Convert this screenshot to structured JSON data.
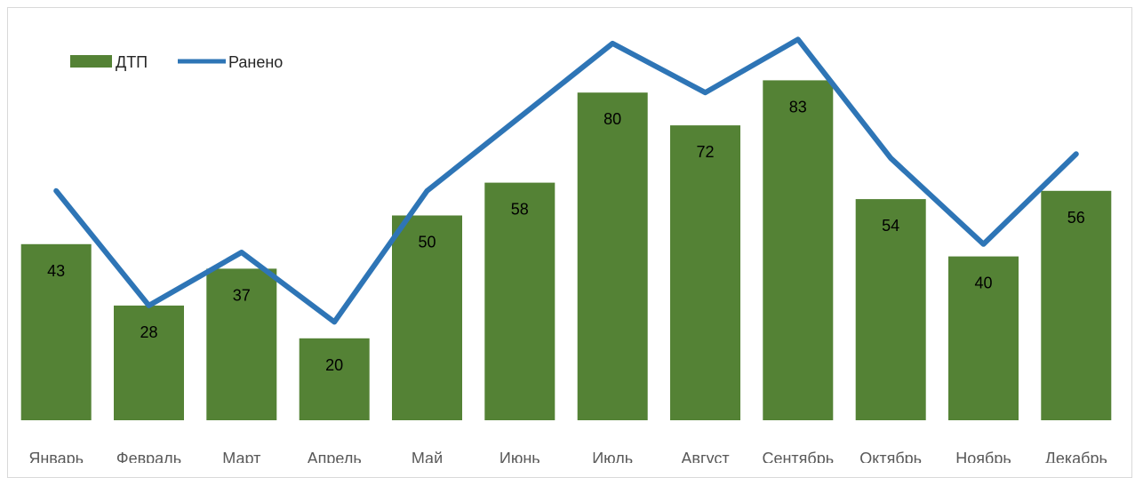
{
  "chart_data": {
    "type": "bar",
    "title": "",
    "categories": [
      "Январь",
      "Февраль",
      "Март",
      "Апрель",
      "Май",
      "Июнь",
      "Июль",
      "Август",
      "Сентябрь",
      "Октябрь",
      "Ноябрь",
      "Декабрь"
    ],
    "series": [
      {
        "name": "ДТП",
        "type": "bar",
        "color": "#548235",
        "values": [
          43,
          28,
          37,
          20,
          50,
          58,
          80,
          72,
          83,
          54,
          40,
          56
        ]
      },
      {
        "name": "Ранено",
        "type": "line",
        "color": "#2E75B6",
        "values": [
          56,
          28,
          41,
          24,
          56,
          74,
          92,
          80,
          93,
          64,
          43,
          65
        ]
      }
    ],
    "data_labels": true,
    "legend_position": "top-left",
    "grid": false,
    "ylim": [
      0,
      100
    ]
  }
}
